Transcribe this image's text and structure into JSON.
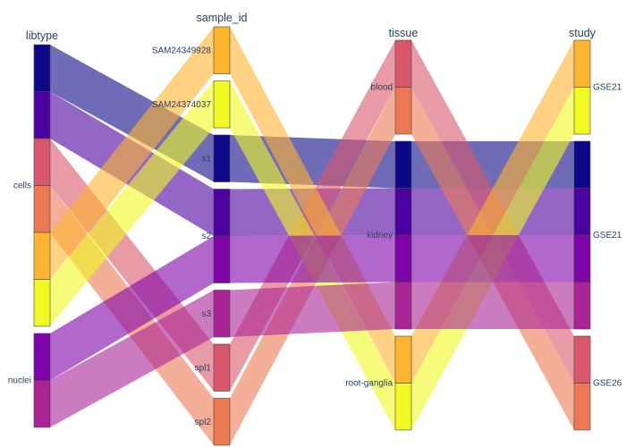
{
  "chart_data": {
    "type": "parallel_categories",
    "dimensions": [
      {
        "name": "libtype",
        "categories": [
          "cells",
          "nuclei"
        ]
      },
      {
        "name": "sample_id",
        "categories": [
          "SAM24349928",
          "SAM24374037",
          "s1",
          "s2",
          "s3",
          "spl1",
          "spl2"
        ]
      },
      {
        "name": "tissue",
        "categories": [
          "blood",
          "kidney",
          "root-ganglia"
        ]
      },
      {
        "name": "study",
        "categories": [
          "GSE21",
          "GSE21",
          "GSE26"
        ]
      }
    ],
    "paths": [
      {
        "libtype": "cells",
        "sample_id": "s1",
        "tissue": "kidney",
        "study": "GSE21",
        "color": "#0d0887"
      },
      {
        "libtype": "cells",
        "sample_id": "s2",
        "tissue": "kidney",
        "study": "GSE21",
        "color": "#4c02a1"
      },
      {
        "libtype": "cells",
        "sample_id": "spl1",
        "tissue": "blood",
        "study": "GSE26",
        "color": "#d8576b"
      },
      {
        "libtype": "cells",
        "sample_id": "spl2",
        "tissue": "blood",
        "study": "GSE26",
        "color": "#ed7953"
      },
      {
        "libtype": "cells",
        "sample_id": "SAM24349928",
        "tissue": "root-ganglia",
        "study": "GSE21",
        "color": "#fdb42f"
      },
      {
        "libtype": "cells",
        "sample_id": "SAM24374037",
        "tissue": "root-ganglia",
        "study": "GSE21",
        "color": "#f0f921"
      },
      {
        "libtype": "nuclei",
        "sample_id": "s2",
        "tissue": "kidney",
        "study": "GSE21",
        "color": "#7e03a8"
      },
      {
        "libtype": "nuclei",
        "sample_id": "s3",
        "tissue": "kidney",
        "study": "GSE21",
        "color": "#a92395"
      }
    ]
  }
}
